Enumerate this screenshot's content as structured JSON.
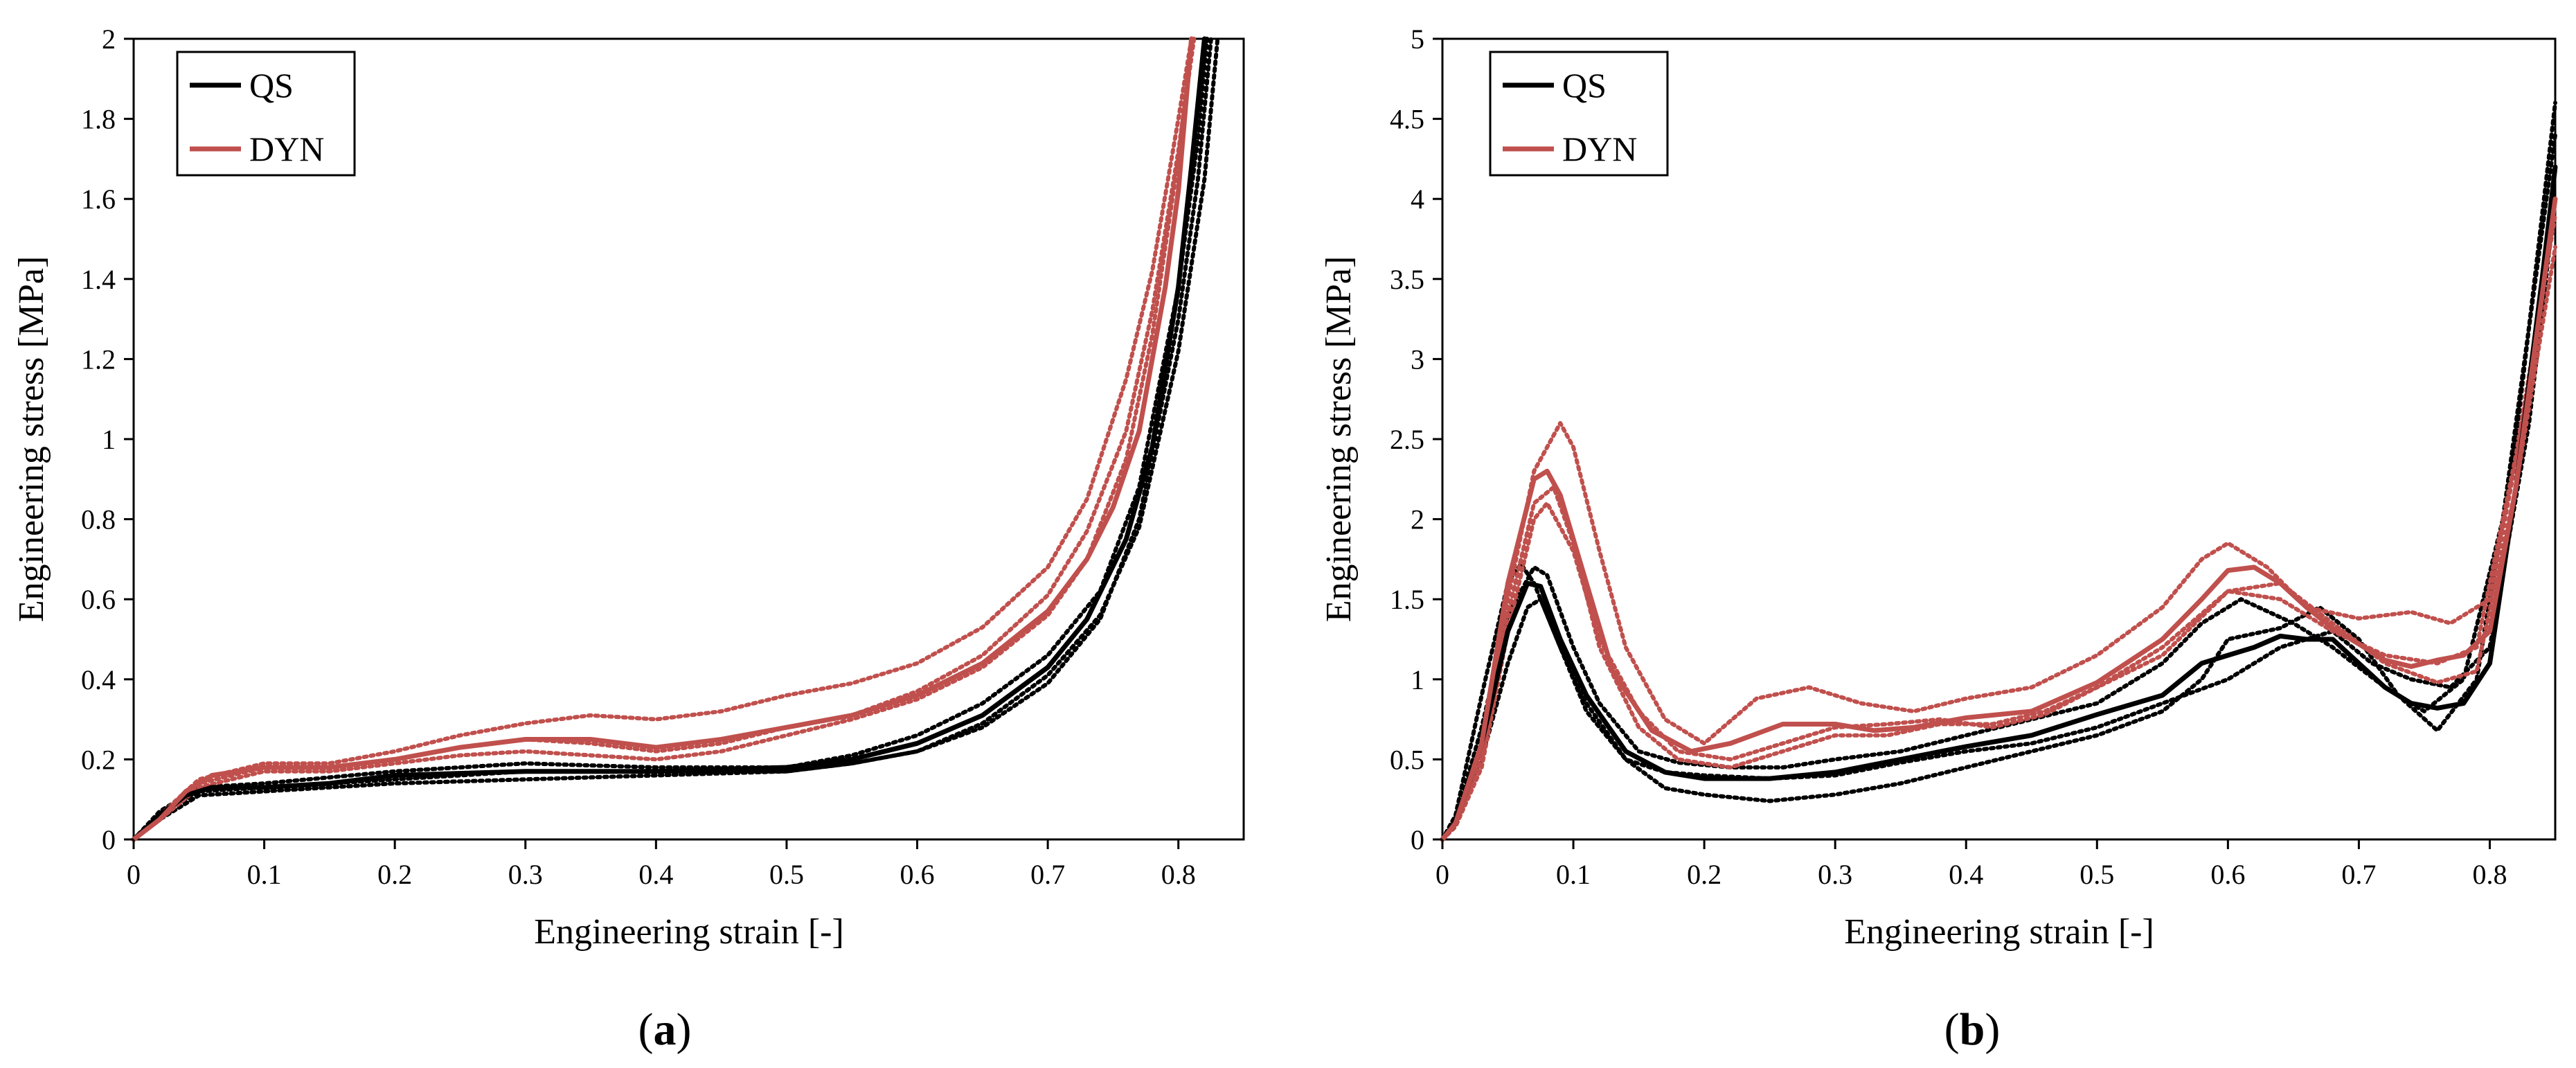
{
  "chart_data": [
    {
      "type": "line",
      "panel": "a",
      "panel_label": "a",
      "xlabel": "Engineering strain [-]",
      "ylabel": "Engineering stress [MPa]",
      "xlim": [
        0,
        0.85
      ],
      "ylim": [
        0,
        2
      ],
      "x_ticks": [
        0,
        0.1,
        0.2,
        0.3,
        0.4,
        0.5,
        0.6,
        0.7,
        0.8
      ],
      "x_tick_labels": [
        "0",
        "0.1",
        "0.2",
        "0.3",
        "0.4",
        "0.5",
        "0.6",
        "0.7",
        "0.8"
      ],
      "y_ticks": [
        0,
        0.2,
        0.4,
        0.6,
        0.8,
        1,
        1.2,
        1.4,
        1.6,
        1.8,
        2
      ],
      "y_tick_labels": [
        "0",
        "0.2",
        "0.4",
        "0.6",
        "0.8",
        "1",
        "1.2",
        "1.4",
        "1.6",
        "1.8",
        "2"
      ],
      "grid": false,
      "legend_position": "top-left",
      "legend": [
        {
          "label": "QS",
          "color": "#000000"
        },
        {
          "label": "DYN",
          "color": "#c0504d"
        }
      ],
      "series": [
        {
          "name": "QS",
          "style": "solid",
          "color": "#000000",
          "x": [
            0,
            0.02,
            0.04,
            0.06,
            0.1,
            0.15,
            0.2,
            0.3,
            0.4,
            0.5,
            0.55,
            0.6,
            0.65,
            0.7,
            0.73,
            0.76,
            0.78,
            0.8,
            0.81,
            0.82
          ],
          "y": [
            0,
            0.06,
            0.11,
            0.13,
            0.13,
            0.14,
            0.16,
            0.17,
            0.17,
            0.18,
            0.2,
            0.24,
            0.31,
            0.43,
            0.55,
            0.75,
            0.98,
            1.38,
            1.68,
            2.0
          ]
        },
        {
          "name": "QS test 1",
          "style": "dotted",
          "color": "#000000",
          "x": [
            0,
            0.02,
            0.05,
            0.1,
            0.2,
            0.3,
            0.4,
            0.5,
            0.55,
            0.6,
            0.65,
            0.7,
            0.74,
            0.77,
            0.8,
            0.815,
            0.825
          ],
          "y": [
            0,
            0.05,
            0.11,
            0.12,
            0.14,
            0.15,
            0.16,
            0.17,
            0.19,
            0.22,
            0.28,
            0.39,
            0.55,
            0.8,
            1.3,
            1.65,
            2.0
          ]
        },
        {
          "name": "QS test 2",
          "style": "dotted",
          "color": "#000000",
          "x": [
            0,
            0.02,
            0.05,
            0.1,
            0.2,
            0.3,
            0.4,
            0.5,
            0.55,
            0.6,
            0.65,
            0.7,
            0.74,
            0.77,
            0.8,
            0.82,
            0.83
          ],
          "y": [
            0,
            0.06,
            0.12,
            0.13,
            0.15,
            0.17,
            0.17,
            0.17,
            0.19,
            0.22,
            0.29,
            0.41,
            0.56,
            0.78,
            1.22,
            1.65,
            2.0
          ]
        },
        {
          "name": "QS test 3",
          "style": "dotted",
          "color": "#000000",
          "x": [
            0,
            0.02,
            0.05,
            0.1,
            0.2,
            0.3,
            0.4,
            0.5,
            0.55,
            0.6,
            0.65,
            0.7,
            0.74,
            0.77,
            0.8,
            0.815,
            0.822
          ],
          "y": [
            0,
            0.07,
            0.13,
            0.14,
            0.17,
            0.19,
            0.18,
            0.18,
            0.21,
            0.26,
            0.34,
            0.46,
            0.62,
            0.88,
            1.38,
            1.75,
            2.0
          ]
        },
        {
          "name": "DYN",
          "style": "solid",
          "color": "#c0504d",
          "x": [
            0,
            0.02,
            0.04,
            0.06,
            0.1,
            0.15,
            0.2,
            0.25,
            0.3,
            0.35,
            0.4,
            0.45,
            0.5,
            0.55,
            0.6,
            0.65,
            0.7,
            0.73,
            0.75,
            0.77,
            0.79,
            0.8,
            0.81
          ],
          "y": [
            0,
            0.05,
            0.12,
            0.16,
            0.18,
            0.18,
            0.2,
            0.23,
            0.25,
            0.25,
            0.23,
            0.25,
            0.28,
            0.31,
            0.36,
            0.44,
            0.57,
            0.7,
            0.83,
            1.02,
            1.38,
            1.62,
            2.0
          ]
        },
        {
          "name": "DYN test 1",
          "style": "dotted",
          "color": "#c0504d",
          "x": [
            0,
            0.02,
            0.05,
            0.1,
            0.15,
            0.2,
            0.25,
            0.3,
            0.35,
            0.4,
            0.45,
            0.5,
            0.55,
            0.6,
            0.65,
            0.7,
            0.73,
            0.76,
            0.78,
            0.8,
            0.81
          ],
          "y": [
            0,
            0.06,
            0.15,
            0.19,
            0.19,
            0.22,
            0.26,
            0.29,
            0.31,
            0.3,
            0.32,
            0.36,
            0.39,
            0.44,
            0.53,
            0.68,
            0.85,
            1.15,
            1.42,
            1.8,
            2.0
          ]
        },
        {
          "name": "DYN test 2",
          "style": "dotted",
          "color": "#c0504d",
          "x": [
            0,
            0.02,
            0.05,
            0.1,
            0.15,
            0.2,
            0.25,
            0.3,
            0.35,
            0.4,
            0.45,
            0.5,
            0.55,
            0.6,
            0.65,
            0.7,
            0.73,
            0.76,
            0.78,
            0.8,
            0.81
          ],
          "y": [
            0,
            0.05,
            0.13,
            0.17,
            0.17,
            0.19,
            0.21,
            0.22,
            0.21,
            0.2,
            0.22,
            0.26,
            0.3,
            0.35,
            0.43,
            0.56,
            0.7,
            0.95,
            1.26,
            1.7,
            2.0
          ]
        },
        {
          "name": "DYN test 3",
          "style": "dotted",
          "color": "#c0504d",
          "x": [
            0,
            0.02,
            0.05,
            0.1,
            0.15,
            0.2,
            0.25,
            0.3,
            0.35,
            0.4,
            0.45,
            0.5,
            0.55,
            0.6,
            0.65,
            0.7,
            0.73,
            0.76,
            0.78,
            0.8,
            0.812
          ],
          "y": [
            0,
            0.05,
            0.14,
            0.18,
            0.18,
            0.2,
            0.23,
            0.25,
            0.24,
            0.22,
            0.24,
            0.28,
            0.31,
            0.37,
            0.46,
            0.61,
            0.77,
            1.02,
            1.32,
            1.72,
            2.0
          ]
        }
      ]
    },
    {
      "type": "line",
      "panel": "b",
      "panel_label": "b",
      "xlabel": "Engineering strain [-]",
      "ylabel": "Engineering stress [MPa]",
      "xlim": [
        0,
        0.85
      ],
      "ylim": [
        0,
        5
      ],
      "x_ticks": [
        0,
        0.1,
        0.2,
        0.3,
        0.4,
        0.5,
        0.6,
        0.7,
        0.8
      ],
      "x_tick_labels": [
        "0",
        "0.1",
        "0.2",
        "0.3",
        "0.4",
        "0.5",
        "0.6",
        "0.7",
        "0.8"
      ],
      "y_ticks": [
        0,
        0.5,
        1,
        1.5,
        2,
        2.5,
        3,
        3.5,
        4,
        4.5,
        5
      ],
      "y_tick_labels": [
        "0",
        "0.5",
        "1",
        "1.5",
        "2",
        "2.5",
        "3",
        "3.5",
        "4",
        "4.5",
        "5"
      ],
      "grid": false,
      "legend_position": "top-left",
      "legend": [
        {
          "label": "QS",
          "color": "#000000"
        },
        {
          "label": "DYN",
          "color": "#c0504d"
        }
      ],
      "series": [
        {
          "name": "QS",
          "style": "solid",
          "color": "#000000",
          "x": [
            0,
            0.01,
            0.03,
            0.05,
            0.065,
            0.075,
            0.09,
            0.11,
            0.14,
            0.17,
            0.2,
            0.25,
            0.3,
            0.35,
            0.4,
            0.45,
            0.5,
            0.55,
            0.58,
            0.6,
            0.62,
            0.64,
            0.66,
            0.68,
            0.7,
            0.72,
            0.74,
            0.76,
            0.78,
            0.8,
            0.82,
            0.84,
            0.85
          ],
          "y": [
            0,
            0.1,
            0.6,
            1.3,
            1.6,
            1.58,
            1.25,
            0.9,
            0.55,
            0.42,
            0.38,
            0.38,
            0.42,
            0.5,
            0.58,
            0.65,
            0.78,
            0.9,
            1.1,
            1.15,
            1.2,
            1.27,
            1.25,
            1.25,
            1.1,
            0.95,
            0.85,
            0.82,
            0.85,
            1.1,
            2.2,
            3.5,
            4.2
          ]
        },
        {
          "name": "QS test 1",
          "style": "dotted",
          "color": "#000000",
          "x": [
            0,
            0.01,
            0.03,
            0.05,
            0.06,
            0.07,
            0.09,
            0.11,
            0.14,
            0.17,
            0.2,
            0.25,
            0.3,
            0.35,
            0.4,
            0.45,
            0.5,
            0.55,
            0.58,
            0.6,
            0.64,
            0.67,
            0.7,
            0.73,
            0.76,
            0.79,
            0.82,
            0.85
          ],
          "y": [
            0,
            0.15,
            0.9,
            1.6,
            1.72,
            1.6,
            1.2,
            0.85,
            0.5,
            0.32,
            0.28,
            0.24,
            0.28,
            0.35,
            0.45,
            0.55,
            0.65,
            0.8,
            1.0,
            1.25,
            1.32,
            1.45,
            1.25,
            0.9,
            0.68,
            1.0,
            2.5,
            4.6
          ]
        },
        {
          "name": "QS test 2",
          "style": "dotted",
          "color": "#000000",
          "x": [
            0,
            0.01,
            0.03,
            0.05,
            0.07,
            0.08,
            0.1,
            0.12,
            0.15,
            0.18,
            0.22,
            0.26,
            0.3,
            0.35,
            0.4,
            0.45,
            0.5,
            0.55,
            0.58,
            0.61,
            0.65,
            0.68,
            0.72,
            0.75,
            0.78,
            0.81,
            0.83,
            0.85
          ],
          "y": [
            0,
            0.12,
            0.7,
            1.4,
            1.7,
            1.65,
            1.2,
            0.85,
            0.55,
            0.48,
            0.45,
            0.45,
            0.5,
            0.55,
            0.65,
            0.75,
            0.85,
            1.1,
            1.35,
            1.5,
            1.35,
            1.2,
            0.95,
            0.8,
            1.0,
            2.0,
            3.2,
            4.4
          ]
        },
        {
          "name": "QS test 3",
          "style": "dotted",
          "color": "#000000",
          "x": [
            0,
            0.01,
            0.03,
            0.05,
            0.065,
            0.075,
            0.09,
            0.11,
            0.14,
            0.17,
            0.2,
            0.25,
            0.3,
            0.35,
            0.4,
            0.45,
            0.5,
            0.55,
            0.6,
            0.64,
            0.68,
            0.71,
            0.74,
            0.77,
            0.8,
            0.83,
            0.85
          ],
          "y": [
            0,
            0.1,
            0.5,
            1.1,
            1.45,
            1.5,
            1.2,
            0.8,
            0.5,
            0.42,
            0.4,
            0.38,
            0.4,
            0.48,
            0.55,
            0.6,
            0.7,
            0.85,
            1.0,
            1.2,
            1.3,
            1.1,
            1.0,
            0.95,
            1.2,
            2.6,
            4.0
          ]
        },
        {
          "name": "DYN",
          "style": "solid",
          "color": "#c0504d",
          "x": [
            0,
            0.01,
            0.03,
            0.05,
            0.07,
            0.08,
            0.09,
            0.11,
            0.13,
            0.16,
            0.19,
            0.22,
            0.26,
            0.3,
            0.33,
            0.36,
            0.4,
            0.45,
            0.5,
            0.55,
            0.58,
            0.6,
            0.62,
            0.64,
            0.66,
            0.68,
            0.7,
            0.72,
            0.74,
            0.76,
            0.78,
            0.8,
            0.82,
            0.84,
            0.85
          ],
          "y": [
            0,
            0.1,
            0.6,
            1.6,
            2.25,
            2.3,
            2.15,
            1.6,
            1.05,
            0.68,
            0.55,
            0.6,
            0.72,
            0.72,
            0.68,
            0.7,
            0.76,
            0.8,
            0.98,
            1.25,
            1.5,
            1.68,
            1.7,
            1.6,
            1.45,
            1.32,
            1.22,
            1.12,
            1.08,
            1.12,
            1.15,
            1.3,
            2.2,
            3.4,
            4.0
          ]
        },
        {
          "name": "DYN test 1",
          "style": "dotted",
          "color": "#c0504d",
          "x": [
            0,
            0.01,
            0.03,
            0.05,
            0.07,
            0.09,
            0.1,
            0.12,
            0.14,
            0.17,
            0.2,
            0.24,
            0.28,
            0.32,
            0.36,
            0.4,
            0.45,
            0.5,
            0.55,
            0.58,
            0.6,
            0.63,
            0.66,
            0.7,
            0.74,
            0.77,
            0.8,
            0.83,
            0.85
          ],
          "y": [
            0,
            0.1,
            0.55,
            1.5,
            2.3,
            2.6,
            2.45,
            1.8,
            1.2,
            0.75,
            0.6,
            0.88,
            0.95,
            0.85,
            0.8,
            0.88,
            0.95,
            1.15,
            1.45,
            1.75,
            1.85,
            1.7,
            1.45,
            1.38,
            1.42,
            1.35,
            1.5,
            2.8,
            4.2
          ]
        },
        {
          "name": "DYN test 2",
          "style": "dotted",
          "color": "#c0504d",
          "x": [
            0,
            0.01,
            0.03,
            0.05,
            0.07,
            0.085,
            0.1,
            0.12,
            0.15,
            0.18,
            0.22,
            0.26,
            0.3,
            0.34,
            0.38,
            0.42,
            0.46,
            0.5,
            0.55,
            0.6,
            0.64,
            0.68,
            0.72,
            0.76,
            0.79,
            0.82,
            0.85
          ],
          "y": [
            0,
            0.08,
            0.5,
            1.4,
            2.1,
            2.2,
            1.85,
            1.2,
            0.7,
            0.5,
            0.45,
            0.55,
            0.65,
            0.65,
            0.72,
            0.72,
            0.8,
            0.95,
            1.2,
            1.55,
            1.5,
            1.3,
            1.15,
            1.1,
            1.2,
            2.4,
            3.9
          ]
        },
        {
          "name": "DYN test 3",
          "style": "dotted",
          "color": "#c0504d",
          "x": [
            0,
            0.01,
            0.03,
            0.05,
            0.07,
            0.08,
            0.1,
            0.12,
            0.15,
            0.18,
            0.22,
            0.26,
            0.3,
            0.34,
            0.38,
            0.42,
            0.46,
            0.5,
            0.55,
            0.6,
            0.64,
            0.68,
            0.72,
            0.76,
            0.79,
            0.82,
            0.85
          ],
          "y": [
            0,
            0.08,
            0.45,
            1.3,
            2.0,
            2.1,
            1.8,
            1.25,
            0.8,
            0.55,
            0.5,
            0.6,
            0.7,
            0.72,
            0.75,
            0.7,
            0.78,
            0.95,
            1.15,
            1.55,
            1.6,
            1.35,
            1.1,
            0.98,
            1.05,
            2.2,
            3.7
          ]
        }
      ]
    }
  ]
}
